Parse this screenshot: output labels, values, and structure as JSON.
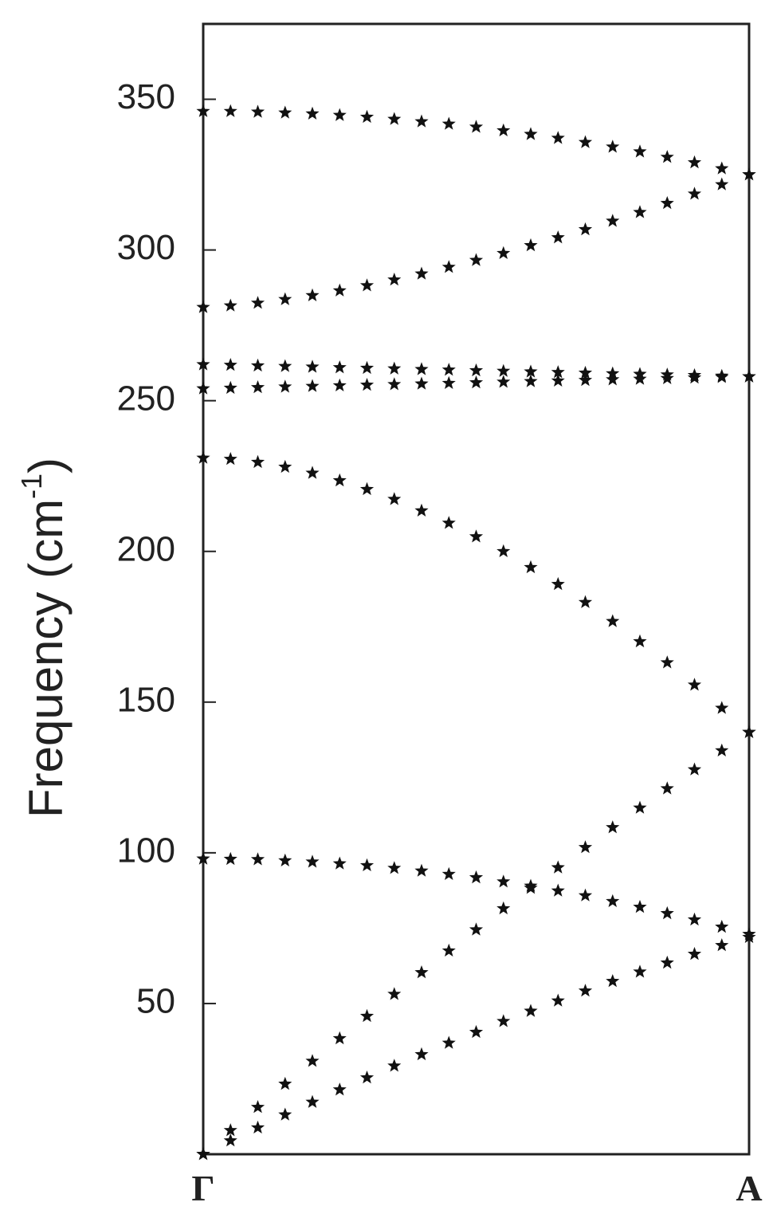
{
  "chart_data": {
    "type": "scatter",
    "marker": "star",
    "ylabel": "Frequency (cm",
    "ylabel_sup": "-1",
    "ylabel_end": ")",
    "x": [
      0,
      0.05,
      0.1,
      0.15,
      0.2,
      0.25,
      0.3,
      0.35,
      0.4,
      0.45,
      0.5,
      0.55,
      0.6,
      0.65,
      0.7,
      0.75,
      0.8,
      0.85,
      0.9,
      0.95,
      1
    ],
    "xlim": [
      0,
      1
    ],
    "xticks": [
      {
        "value": 0,
        "label": "Γ"
      },
      {
        "value": 1,
        "label": "A"
      }
    ],
    "ylim": [
      0,
      375
    ],
    "yticks": [
      50,
      100,
      150,
      200,
      250,
      300,
      350
    ],
    "series": [
      {
        "color": "#111111",
        "values": [
          346,
          346,
          345.8,
          345.5,
          345.2,
          344.7,
          344.1,
          343.4,
          342.6,
          341.8,
          340.8,
          339.6,
          338.4,
          337.1,
          335.7,
          334.2,
          332.6,
          330.8,
          329,
          327,
          325
        ]
      },
      {
        "color": "#111111",
        "values": [
          281,
          281.5,
          282.4,
          283.6,
          284.9,
          286.5,
          288.2,
          290.1,
          292.1,
          294.3,
          296.6,
          298.9,
          301.5,
          304.1,
          306.8,
          309.6,
          312.5,
          315.5,
          318.6,
          321.7,
          325
        ]
      },
      {
        "color": "#111111",
        "values": [
          262,
          261.8,
          261.6,
          261.4,
          261.2,
          261,
          260.8,
          260.6,
          260.4,
          260.2,
          260,
          259.8,
          259.6,
          259.4,
          259.2,
          259,
          258.8,
          258.6,
          258.4,
          258.2,
          258
        ]
      },
      {
        "color": "#111111",
        "values": [
          254,
          254.2,
          254.4,
          254.6,
          254.8,
          255,
          255.2,
          255.4,
          255.6,
          255.8,
          256,
          256.2,
          256.4,
          256.6,
          256.8,
          257,
          257.2,
          257.4,
          257.6,
          257.8,
          258
        ]
      },
      {
        "color": "#111111",
        "values": [
          231,
          230.6,
          229.6,
          228,
          226,
          223.5,
          220.6,
          217.3,
          213.5,
          209.4,
          204.9,
          200,
          194.7,
          189.1,
          183.1,
          176.8,
          170.1,
          163.1,
          155.7,
          148,
          140
        ]
      },
      {
        "color": "#111111",
        "values": [
          98,
          97.9,
          97.8,
          97.4,
          97,
          96.4,
          95.8,
          94.9,
          94,
          92.9,
          91.8,
          90.4,
          89,
          87.4,
          85.8,
          83.9,
          82,
          79.9,
          77.8,
          75.4,
          73
        ]
      },
      {
        "color": "#111111",
        "values": [
          0,
          7.9,
          15.6,
          23.3,
          30.9,
          38.4,
          45.8,
          53.1,
          60.3,
          67.5,
          74.5,
          81.5,
          88.3,
          95.1,
          101.8,
          108.4,
          114.9,
          121.3,
          127.6,
          133.9,
          140
        ]
      },
      {
        "color": "#111111",
        "values": [
          0,
          4.5,
          8.8,
          13.1,
          17.3,
          21.4,
          25.4,
          29.3,
          33.1,
          36.9,
          40.5,
          44.1,
          47.5,
          50.9,
          54.2,
          57.4,
          60.5,
          63.5,
          66.4,
          69.3,
          72
        ]
      }
    ]
  }
}
